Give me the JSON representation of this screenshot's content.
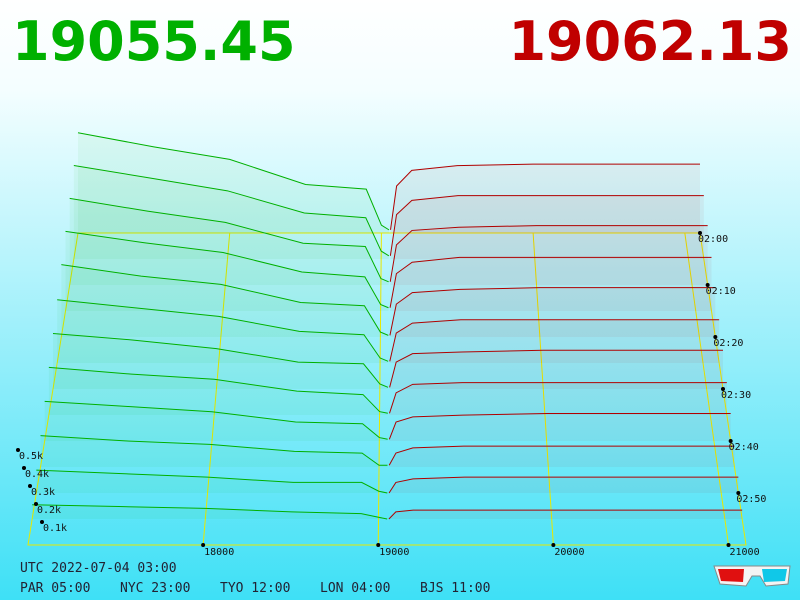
{
  "bid_price": 19055.45,
  "ask_price": 19062.13,
  "chart_data": {
    "type": "depth3d",
    "xlim": [
      17000,
      21100
    ],
    "xticks": [
      18000,
      19000,
      20000,
      21000
    ],
    "vlim": [
      0,
      0.5
    ],
    "vticks": [
      {
        "value": 0.1,
        "label": "0.1k"
      },
      {
        "value": 0.2,
        "label": "0.2k"
      },
      {
        "value": 0.3,
        "label": "0.3k"
      },
      {
        "value": 0.4,
        "label": "0.4k"
      },
      {
        "value": 0.5,
        "label": "0.5k"
      }
    ],
    "time_range": [
      "02:00",
      "03:00"
    ],
    "time_ticks": [
      "02:00",
      "02:10",
      "02:20",
      "02:30",
      "02:40",
      "02:50"
    ],
    "bid_color": "#00b000",
    "ask_color": "#b00000",
    "grid_color": "#e8e800",
    "bid_prices": [
      17000,
      17500,
      18000,
      18500,
      18900,
      19000,
      19050
    ],
    "ask_prices": [
      19060,
      19100,
      19200,
      19500,
      20000,
      20500,
      21000,
      21100
    ],
    "snapshots": [
      {
        "time": "02:00",
        "bids": [
          0.64,
          0.55,
          0.47,
          0.31,
          0.28,
          0.05,
          0.02
        ],
        "asks": [
          0.02,
          0.3,
          0.4,
          0.43,
          0.44,
          0.44,
          0.44,
          0.44
        ]
      },
      {
        "time": "02:05",
        "bids": [
          0.59,
          0.51,
          0.43,
          0.29,
          0.26,
          0.05,
          0.02
        ],
        "asks": [
          0.02,
          0.28,
          0.37,
          0.4,
          0.4,
          0.4,
          0.4,
          0.4
        ]
      },
      {
        "time": "02:10",
        "bids": [
          0.54,
          0.46,
          0.39,
          0.26,
          0.24,
          0.04,
          0.02
        ],
        "asks": [
          0.02,
          0.25,
          0.34,
          0.36,
          0.37,
          0.37,
          0.37,
          0.37
        ]
      },
      {
        "time": "02:15",
        "bids": [
          0.49,
          0.42,
          0.36,
          0.24,
          0.21,
          0.04,
          0.02
        ],
        "asks": [
          0.02,
          0.23,
          0.3,
          0.33,
          0.33,
          0.33,
          0.33,
          0.33
        ]
      },
      {
        "time": "02:20",
        "bids": [
          0.44,
          0.37,
          0.32,
          0.21,
          0.19,
          0.03,
          0.01
        ],
        "asks": [
          0.01,
          0.2,
          0.27,
          0.29,
          0.3,
          0.3,
          0.3,
          0.3
        ]
      },
      {
        "time": "02:25",
        "bids": [
          0.38,
          0.33,
          0.28,
          0.19,
          0.17,
          0.03,
          0.01
        ],
        "asks": [
          0.01,
          0.18,
          0.24,
          0.26,
          0.26,
          0.26,
          0.26,
          0.26
        ]
      },
      {
        "time": "02:30",
        "bids": [
          0.33,
          0.29,
          0.24,
          0.16,
          0.15,
          0.03,
          0.01
        ],
        "asks": [
          0.01,
          0.16,
          0.21,
          0.22,
          0.23,
          0.23,
          0.23,
          0.23
        ]
      },
      {
        "time": "02:35",
        "bids": [
          0.28,
          0.24,
          0.21,
          0.14,
          0.12,
          0.02,
          0.01
        ],
        "asks": [
          0.01,
          0.13,
          0.18,
          0.19,
          0.19,
          0.19,
          0.19,
          0.19
        ]
      },
      {
        "time": "02:40",
        "bids": [
          0.23,
          0.2,
          0.17,
          0.11,
          0.1,
          0.02,
          0.01
        ],
        "asks": [
          0.01,
          0.11,
          0.14,
          0.15,
          0.16,
          0.16,
          0.16,
          0.16
        ]
      },
      {
        "time": "02:45",
        "bids": [
          0.18,
          0.15,
          0.13,
          0.09,
          0.08,
          0.01,
          0.01
        ],
        "asks": [
          0.01,
          0.08,
          0.11,
          0.12,
          0.12,
          0.12,
          0.12,
          0.12
        ]
      },
      {
        "time": "02:50",
        "bids": [
          0.13,
          0.11,
          0.09,
          0.06,
          0.06,
          0.01,
          0.0
        ],
        "asks": [
          0.0,
          0.06,
          0.08,
          0.09,
          0.09,
          0.09,
          0.09,
          0.09
        ]
      },
      {
        "time": "02:55",
        "bids": [
          0.08,
          0.07,
          0.06,
          0.04,
          0.03,
          0.01,
          0.0
        ],
        "asks": [
          0.0,
          0.04,
          0.05,
          0.05,
          0.05,
          0.05,
          0.05,
          0.05
        ]
      }
    ]
  },
  "clock": {
    "utc": "UTC 2022-07-04 03:00",
    "zones": [
      "PAR 05:00",
      "NYC 23:00",
      "TYO 12:00",
      "LON 04:00",
      "BJS 11:00"
    ]
  }
}
